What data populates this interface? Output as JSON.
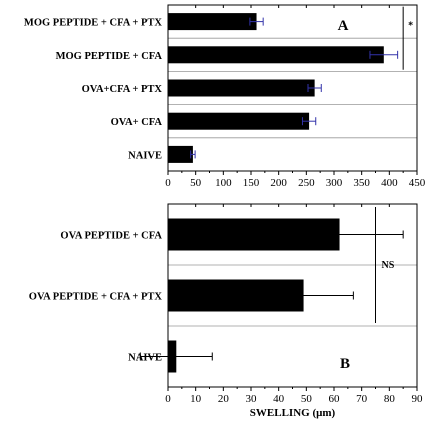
{
  "chart_data": [
    {
      "type": "bar",
      "orientation": "horizontal",
      "panel_label": "A",
      "categories": [
        "MOG PEPTIDE + CFA + PTX",
        "MOG PEPTIDE + CFA",
        "OVA+CFA + PTX",
        "OVA+ CFA",
        "NAIVE"
      ],
      "values": [
        160,
        390,
        265,
        255,
        45
      ],
      "errors": [
        12,
        25,
        12,
        12,
        4
      ],
      "error_color": "#3333aa",
      "xlim": [
        0,
        450
      ],
      "xticks": [
        0,
        50,
        100,
        150,
        200,
        250,
        300,
        350,
        400,
        450
      ],
      "tick_labels": [
        "0",
        "50",
        "100",
        "150",
        "200",
        "250",
        "300",
        "350",
        "400",
        "450"
      ],
      "annotation": {
        "text": "*",
        "bracket_x": 425,
        "between": [
          "MOG PEPTIDE + CFA + PTX",
          "MOG PEPTIDE + CFA"
        ]
      }
    },
    {
      "type": "bar",
      "orientation": "horizontal",
      "panel_label": "B",
      "categories": [
        "OVA PEPTIDE + CFA",
        "OVA PEPTIDE + CFA + PTX",
        "NAIVE"
      ],
      "values": [
        62,
        49,
        3
      ],
      "errors": [
        23,
        18,
        13
      ],
      "error_color": "#000000",
      "xlim": [
        0,
        90
      ],
      "xticks": [
        0,
        10,
        20,
        30,
        40,
        50,
        60,
        70,
        80,
        90
      ],
      "tick_labels": [
        "0",
        "10",
        "20",
        "30",
        "40",
        "50",
        "60",
        "70",
        "80",
        "90"
      ],
      "xlabel": "SWELLING (μm)",
      "annotation": {
        "text": "NS",
        "bracket_x": 75,
        "between": [
          "OVA PEPTIDE + CFA",
          "OVA PEPTIDE + CFA + PTX"
        ]
      }
    }
  ]
}
